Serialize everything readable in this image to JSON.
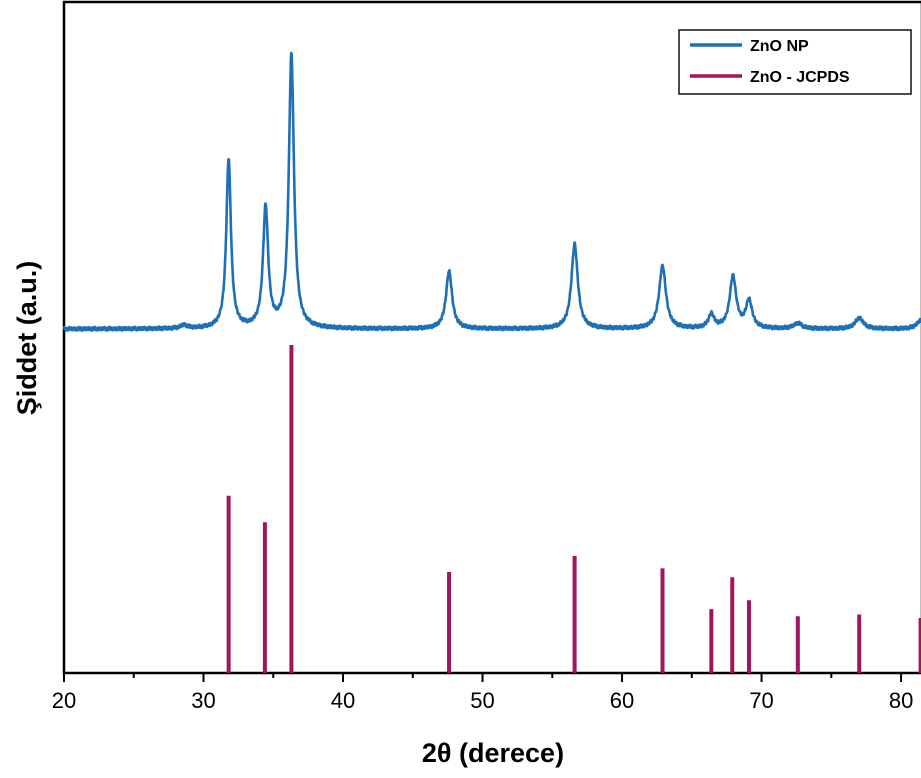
{
  "chart_data": {
    "type": "line",
    "title": "",
    "xlabel": "2θ (derece)",
    "ylabel": "Şiddet (a.u.)",
    "xlim": [
      20,
      81.5
    ],
    "x_ticks": [
      20,
      30,
      40,
      50,
      60,
      70,
      80
    ],
    "x_minor_ticks": [
      25,
      35,
      45,
      55,
      65,
      75
    ],
    "y_ticks_shown": false,
    "grid": false,
    "legend": {
      "position": "top-right",
      "entries": [
        "ZnO NP",
        "ZnO - JCPDS"
      ]
    },
    "series": [
      {
        "name": "ZnO NP",
        "style": "line",
        "color": "#1f6fb4",
        "baseline": 0,
        "peaks": [
          {
            "x": 28.6,
            "height": 0.012,
            "width": 0.3
          },
          {
            "x": 31.8,
            "height": 0.62,
            "width": 0.2
          },
          {
            "x": 34.45,
            "height": 0.44,
            "width": 0.22
          },
          {
            "x": 36.3,
            "height": 1.0,
            "width": 0.22
          },
          {
            "x": 47.6,
            "height": 0.21,
            "width": 0.26
          },
          {
            "x": 56.6,
            "height": 0.31,
            "width": 0.27
          },
          {
            "x": 62.9,
            "height": 0.23,
            "width": 0.29
          },
          {
            "x": 66.4,
            "height": 0.05,
            "width": 0.25
          },
          {
            "x": 67.95,
            "height": 0.19,
            "width": 0.28
          },
          {
            "x": 69.1,
            "height": 0.1,
            "width": 0.27
          },
          {
            "x": 72.6,
            "height": 0.02,
            "width": 0.35
          },
          {
            "x": 77.0,
            "height": 0.04,
            "width": 0.35
          },
          {
            "x": 81.4,
            "height": 0.03,
            "width": 0.35
          }
        ]
      },
      {
        "name": "ZnO - JCPDS",
        "style": "stick",
        "color": "#a0155f",
        "x": [
          31.8,
          34.4,
          36.3,
          47.6,
          56.6,
          62.9,
          66.4,
          67.9,
          69.1,
          72.6,
          77.0,
          81.4
        ],
        "values": [
          100,
          85,
          185,
          57,
          66,
          59,
          36,
          54,
          41,
          32,
          33,
          31
        ]
      }
    ]
  }
}
